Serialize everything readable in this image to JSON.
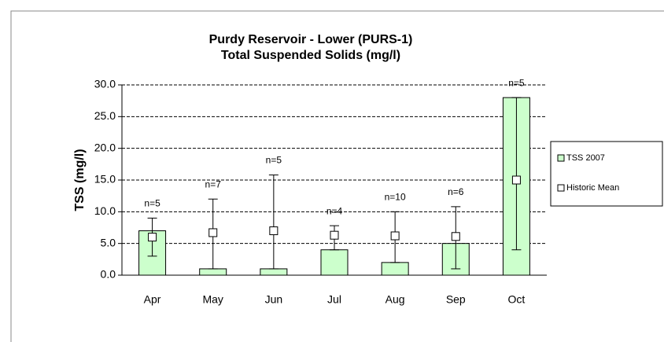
{
  "chart_data": {
    "type": "bar",
    "title": [
      "Purdy Reservoir - Lower (PURS-1)",
      "Total Suspended Solids  (mg/l)"
    ],
    "y_label": "TSS (mg/l)",
    "categories": [
      "Apr",
      "May",
      "Jun",
      "Jul",
      "Aug",
      "Sep",
      "Oct"
    ],
    "series": [
      {
        "name": "TSS 2007",
        "color": "#ccffcc",
        "values": [
          7.0,
          1.0,
          1.0,
          4.0,
          2.0,
          5.0,
          28.0
        ]
      },
      {
        "name": "Historic Mean",
        "color": "#ffffff",
        "values": [
          6.0,
          6.7,
          7.0,
          6.3,
          6.2,
          6.1,
          15.0
        ]
      }
    ],
    "range": {
      "low": [
        3.0,
        1.0,
        1.0,
        4.0,
        2.0,
        1.0,
        4.0
      ],
      "high": [
        9.0,
        12.0,
        15.8,
        7.8,
        10.0,
        10.8,
        28.0
      ]
    },
    "annotations": [
      "n=5",
      "n=7",
      "n=5",
      "n=4",
      "n=10",
      "n=6",
      "n=5"
    ],
    "ylim": [
      0,
      30
    ],
    "yticks": [
      {
        "value": 0,
        "label": "0.0"
      },
      {
        "value": 5,
        "label": "5.0"
      },
      {
        "value": 10,
        "label": "10.0"
      },
      {
        "value": 15,
        "label": "15.0"
      },
      {
        "value": 20,
        "label": "20.0"
      },
      {
        "value": 25,
        "label": "25.0"
      },
      {
        "value": 30,
        "label": "30.0"
      }
    ],
    "grid": true,
    "legend": "right"
  }
}
